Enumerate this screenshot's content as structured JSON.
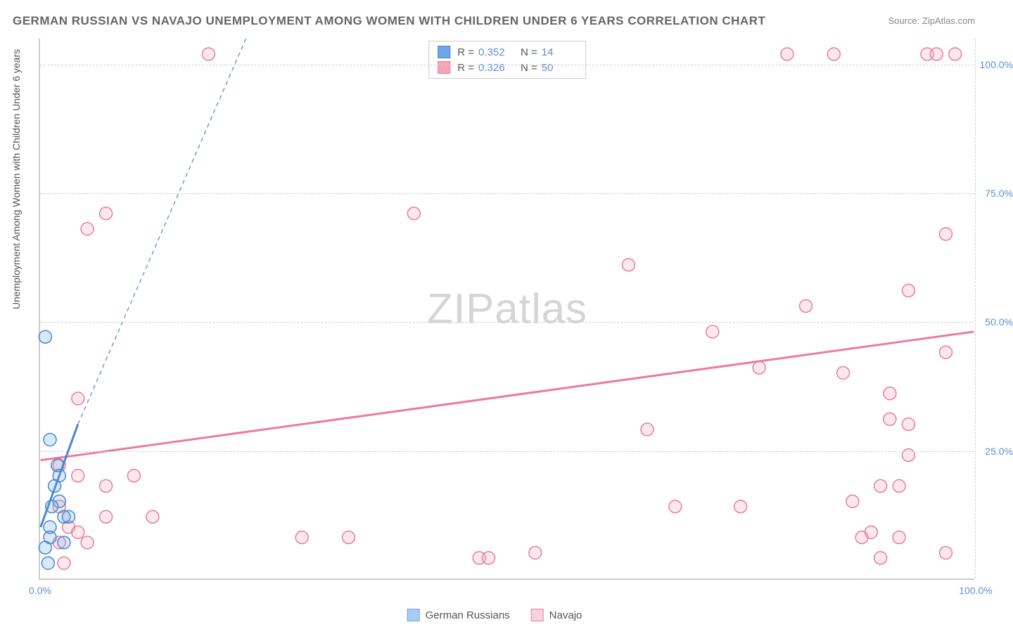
{
  "title": "GERMAN RUSSIAN VS NAVAJO UNEMPLOYMENT AMONG WOMEN WITH CHILDREN UNDER 6 YEARS CORRELATION CHART",
  "source": "Source: ZipAtlas.com",
  "y_axis_label": "Unemployment Among Women with Children Under 6 years",
  "watermark": "ZIPatlas",
  "chart": {
    "type": "scatter",
    "xlim": [
      0,
      100
    ],
    "ylim": [
      0,
      105
    ],
    "x_ticks": [
      0,
      100
    ],
    "y_ticks": [
      25,
      50,
      75,
      100
    ],
    "x_tick_labels": [
      "0.0%",
      "100.0%"
    ],
    "y_tick_labels": [
      "25.0%",
      "50.0%",
      "75.0%",
      "100.0%"
    ],
    "grid_color": "#d0d0d0",
    "background_color": "#ffffff",
    "axis_color": "#cccccc",
    "tick_label_color": "#5b8fd6",
    "marker_radius": 9,
    "marker_stroke_width": 1.5,
    "marker_fill_opacity": 0.25,
    "series": [
      {
        "name": "German Russians",
        "color": "#6ca6e8",
        "stroke": "#4a86d0",
        "R": "0.352",
        "N": "14",
        "trend": {
          "x1": 0,
          "y1": 10,
          "x2": 4,
          "y2": 30,
          "style": "solid",
          "width": 3,
          "ext_x2": 22,
          "ext_y2": 105,
          "ext_style": "dashed",
          "ext_width": 1.2
        },
        "points": [
          [
            0.5,
            47
          ],
          [
            1.0,
            27
          ],
          [
            1.8,
            22
          ],
          [
            1.5,
            18
          ],
          [
            2.0,
            15
          ],
          [
            2.5,
            12
          ],
          [
            1.0,
            10
          ],
          [
            1.0,
            8
          ],
          [
            2.5,
            7
          ],
          [
            0.5,
            6
          ],
          [
            3.0,
            12
          ],
          [
            0.8,
            3
          ],
          [
            2.0,
            20
          ],
          [
            1.2,
            14
          ]
        ]
      },
      {
        "name": "Navajo",
        "color": "#f5a3b8",
        "stroke": "#e87d9c",
        "R": "0.326",
        "N": "50",
        "trend": {
          "x1": 0,
          "y1": 23,
          "x2": 100,
          "y2": 48,
          "style": "solid",
          "width": 3
        },
        "points": [
          [
            18,
            102
          ],
          [
            80,
            102
          ],
          [
            85,
            102
          ],
          [
            95,
            102
          ],
          [
            96,
            102
          ],
          [
            98,
            102
          ],
          [
            7,
            71
          ],
          [
            5,
            68
          ],
          [
            40,
            71
          ],
          [
            97,
            67
          ],
          [
            63,
            61
          ],
          [
            82,
            53
          ],
          [
            93,
            56
          ],
          [
            72,
            48
          ],
          [
            77,
            41
          ],
          [
            86,
            40
          ],
          [
            97,
            44
          ],
          [
            4,
            35
          ],
          [
            2,
            22
          ],
          [
            4,
            20
          ],
          [
            91,
            36
          ],
          [
            91,
            31
          ],
          [
            93,
            30
          ],
          [
            93,
            24
          ],
          [
            7,
            18
          ],
          [
            10,
            20
          ],
          [
            7,
            12
          ],
          [
            12,
            12
          ],
          [
            68,
            14
          ],
          [
            75,
            14
          ],
          [
            65,
            29
          ],
          [
            87,
            15
          ],
          [
            90,
            18
          ],
          [
            92,
            18
          ],
          [
            3,
            10
          ],
          [
            4,
            9
          ],
          [
            2,
            7
          ],
          [
            5,
            7
          ],
          [
            28,
            8
          ],
          [
            33,
            8
          ],
          [
            47,
            4
          ],
          [
            48,
            4
          ],
          [
            53,
            5
          ],
          [
            88,
            8
          ],
          [
            89,
            9
          ],
          [
            92,
            8
          ],
          [
            90,
            4
          ],
          [
            97,
            5
          ],
          [
            2.5,
            3
          ],
          [
            2,
            14
          ]
        ]
      }
    ]
  },
  "legend": {
    "items": [
      {
        "label": "German Russians",
        "color": "#a8cdf5",
        "border": "#6ca6e8"
      },
      {
        "label": "Navajo",
        "color": "#fbd2dd",
        "border": "#e87d9c"
      }
    ]
  }
}
